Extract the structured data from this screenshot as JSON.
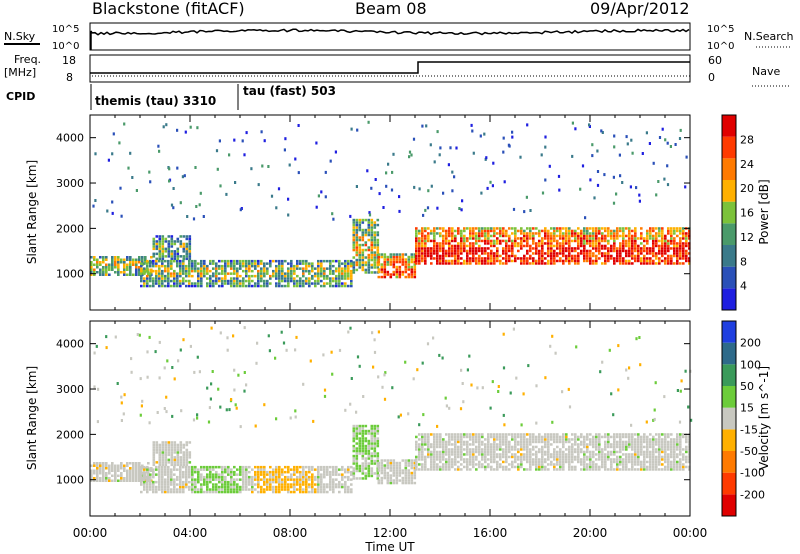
{
  "header": {
    "station": "Blackstone (fitACF)",
    "beam": "Beam 08",
    "date": "09/Apr/2012"
  },
  "top_panels": {
    "nsky_label": "N.Sky",
    "nsearch_label": "N.Search",
    "count_ticks": [
      "10^5",
      "10^0"
    ],
    "freq_label": "Freq.",
    "freq_unit": "[MHz]",
    "freq_ticks": [
      "18",
      "8"
    ],
    "nave_label": "Nave",
    "nave_ticks": [
      "60",
      "0"
    ],
    "cpid_label": "CPID",
    "cpid_segments": [
      {
        "label": "themis (tau) 3310",
        "start_hour": 0
      },
      {
        "label": "tau (fast) 503",
        "start_hour": 6
      }
    ]
  },
  "chart_data": [
    {
      "type": "heatmap",
      "panel": "power",
      "ylabel": "Slant Range [km]",
      "yticks": [
        1000,
        2000,
        3000,
        4000
      ],
      "ylim": [
        200,
        4500
      ],
      "xlim": [
        0,
        24
      ],
      "colorbar": {
        "label": "Power [dB]",
        "ticks": [
          4,
          8,
          12,
          16,
          20,
          24,
          28
        ],
        "range": [
          0,
          32
        ],
        "colors": [
          "#1f1fe0",
          "#2a50b8",
          "#3a7a8a",
          "#4a9a6a",
          "#7cc23a",
          "#ffb000",
          "#ff7a00",
          "#ff3a00",
          "#e00000"
        ]
      },
      "echo_bands": [
        {
          "t0": 0.0,
          "t1": 2.5,
          "r0": 950,
          "r1": 1350,
          "level": 0.55
        },
        {
          "t0": 2.5,
          "t1": 4.0,
          "r0": 1300,
          "r1": 1800,
          "level": 0.45
        },
        {
          "t0": 2.0,
          "t1": 10.5,
          "r0": 700,
          "r1": 1300,
          "level": 0.5
        },
        {
          "t0": 10.5,
          "t1": 11.5,
          "r0": 1000,
          "r1": 2200,
          "level": 0.6
        },
        {
          "t0": 11.5,
          "t1": 13.0,
          "r0": 900,
          "r1": 1400,
          "level": 0.7
        },
        {
          "t0": 13.0,
          "t1": 24.0,
          "r0": 1200,
          "r1": 2000,
          "level": 0.8
        }
      ]
    },
    {
      "type": "heatmap",
      "panel": "velocity",
      "ylabel": "Slant Range [km]",
      "yticks": [
        1000,
        2000,
        3000,
        4000
      ],
      "ylim": [
        200,
        4500
      ],
      "xlim": [
        0,
        24
      ],
      "xlabel": "Time UT",
      "xticks": [
        "00:00",
        "04:00",
        "08:00",
        "12:00",
        "16:00",
        "20:00",
        "00:00"
      ],
      "colorbar": {
        "label": "Velocity [m s^-1]",
        "ticks": [
          200,
          100,
          50,
          15,
          -15,
          -50,
          -100,
          -200
        ],
        "colors": [
          "#1f3fe0",
          "#2e6a8a",
          "#3a9a5a",
          "#6ccc3a",
          "#c8c8c0",
          "#ffb000",
          "#ff7a00",
          "#ff3a00",
          "#e00000"
        ]
      }
    }
  ]
}
